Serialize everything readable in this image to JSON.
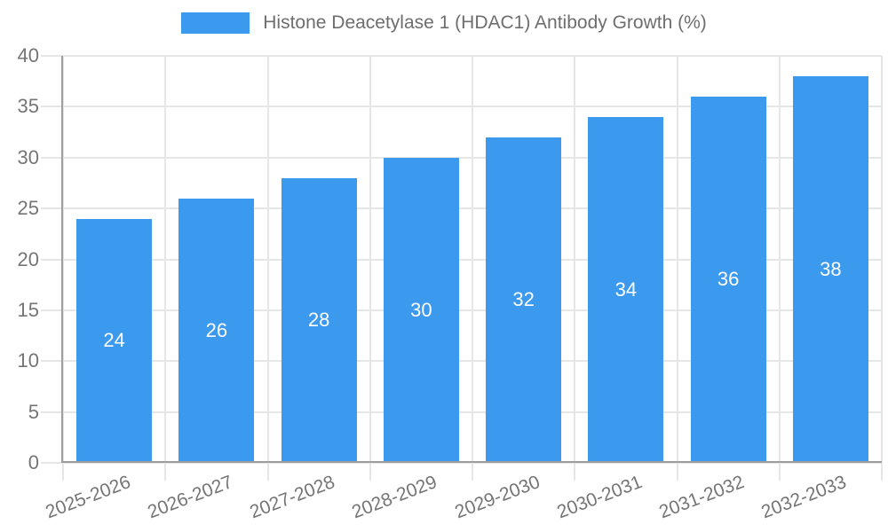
{
  "legend": {
    "label": "Histone Deacetylase 1 (HDAC1) Antibody Growth (%)"
  },
  "chart_data": {
    "type": "bar",
    "title": "Histone Deacetylase 1 (HDAC1) Antibody Growth (%)",
    "categories": [
      "2025-2026",
      "2026-2027",
      "2027-2028",
      "2028-2029",
      "2029-2030",
      "2030-2031",
      "2031-2032",
      "2032-2033"
    ],
    "values": [
      24,
      26,
      28,
      30,
      32,
      34,
      36,
      38
    ],
    "bar_labels": [
      "24",
      "26",
      "28",
      "30",
      "32",
      "34",
      "36",
      "38"
    ],
    "xlabel": "",
    "ylabel": "",
    "ylim": [
      0,
      40
    ],
    "yticks": [
      0,
      5,
      10,
      15,
      20,
      25,
      30,
      35,
      40
    ],
    "grid": true,
    "legend_position": "top",
    "colors": {
      "bar": "#3b99ee",
      "bar_label": "#ffffff",
      "grid": "#e6e6e6",
      "axis": "#9e9e9e",
      "tick_label": "#757575",
      "legend_text": "#6e6e6e",
      "background": "#ffffff"
    }
  }
}
